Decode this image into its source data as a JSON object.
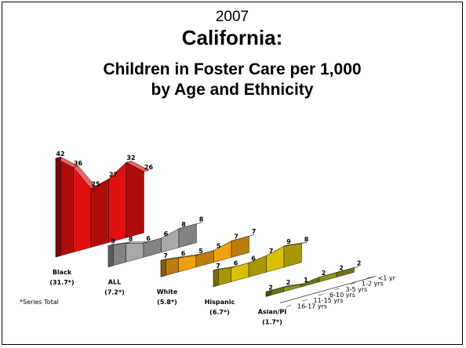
{
  "title": {
    "year": "2007",
    "main": "California:",
    "line1": "Children in Foster Care per 1,000",
    "line2": "by Age and Ethnicity"
  },
  "footnote": "*Series Total",
  "chart_data": {
    "type": "area",
    "title": "Children in Foster Care per 1,000 by Age and Ethnicity",
    "categories": [
      "<1 yr",
      "1-2 yrs",
      "3-5 yrs",
      "6-10 yrs",
      "11-15 yrs",
      "16-17 yrs"
    ],
    "series": [
      {
        "name": "Black",
        "total": "(31.7*)",
        "values": [
          42,
          36,
          25,
          27,
          32,
          26
        ],
        "color": "#e01010"
      },
      {
        "name": "ALL",
        "total": "(7.2*)",
        "values": [
          9,
          8,
          6,
          6,
          8,
          8
        ],
        "color": "#a8a8a8"
      },
      {
        "name": "White",
        "total": "(5.8*)",
        "values": [
          7,
          6,
          5,
          5,
          7,
          7
        ],
        "color": "#f0a010"
      },
      {
        "name": "Hispanic",
        "total": "(6.7*)",
        "values": [
          7,
          6,
          6,
          7,
          9,
          8
        ],
        "color": "#d8c000"
      },
      {
        "name": "Asian/PI",
        "total": "(1.7*)",
        "values": [
          2,
          2,
          1,
          2,
          2,
          2
        ],
        "color": "#8a9418"
      }
    ]
  }
}
